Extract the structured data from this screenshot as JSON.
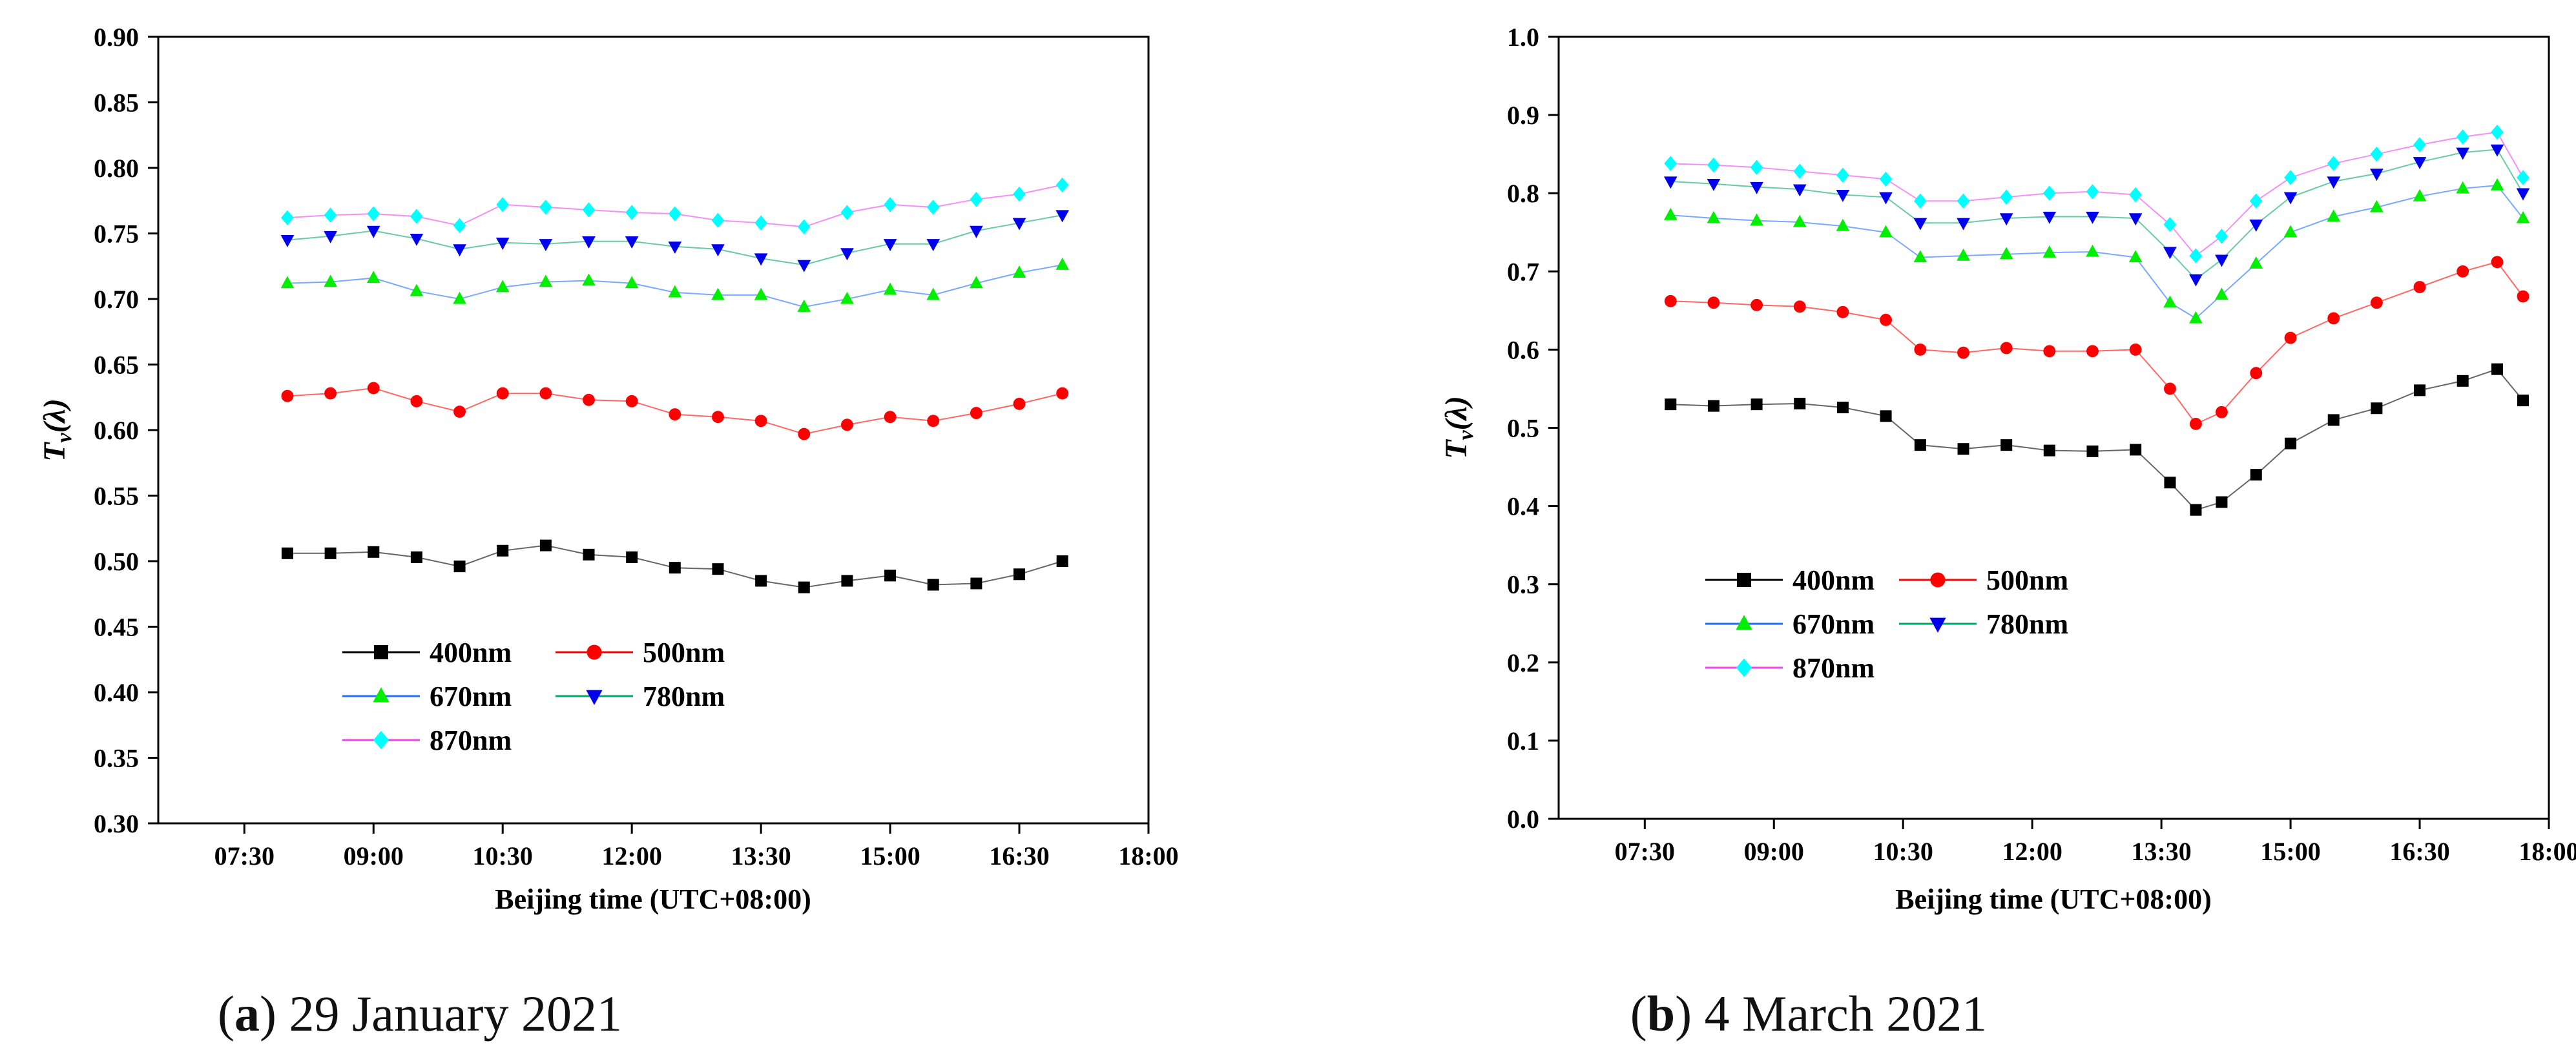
{
  "colors": {
    "400nm": "#000000",
    "500nm": "#ff0000",
    "670nm": "#00ee00",
    "780nm": "#0000ee",
    "870nm": "#00ffff",
    "line_400nm": "#000000",
    "line_500nm": "#ff0000",
    "line_670nm": "#1f6fff",
    "line_780nm": "#00aa66",
    "line_870nm": "#ee44ee"
  },
  "captions": [
    {
      "letter": "a",
      "text": "29 January 2021"
    },
    {
      "letter": "b",
      "text": "4 March 2021"
    }
  ],
  "chart_data": [
    {
      "type": "scatter",
      "panel": "a",
      "title": "",
      "xlabel": "Beijing time (UTC+08:00)",
      "ylabel": "T_v(λ)",
      "xlim": [
        6.5,
        18.0
      ],
      "ylim": [
        0.3,
        0.9
      ],
      "xticks": [
        7.5,
        9.0,
        10.5,
        12.0,
        13.5,
        15.0,
        16.5,
        18.0
      ],
      "xtick_labels": [
        "07:30",
        "09:00",
        "10:30",
        "12:00",
        "13:30",
        "15:00",
        "16:30",
        "18:00"
      ],
      "yticks": [
        0.3,
        0.35,
        0.4,
        0.45,
        0.5,
        0.55,
        0.6,
        0.65,
        0.7,
        0.75,
        0.8,
        0.85,
        0.9
      ],
      "ytick_labels": [
        "0.30",
        "0.35",
        "0.40",
        "0.45",
        "0.50",
        "0.55",
        "0.60",
        "0.65",
        "0.70",
        "0.75",
        "0.80",
        "0.85",
        "0.90"
      ],
      "legend": [
        "400nm",
        "500nm",
        "670nm",
        "780nm",
        "870nm"
      ],
      "legend_position": "lower-left",
      "x": [
        8.0,
        8.5,
        9.0,
        9.5,
        10.0,
        10.5,
        11.0,
        11.5,
        12.0,
        12.5,
        13.0,
        13.5,
        14.0,
        14.5,
        15.0,
        15.5,
        16.0,
        16.5,
        17.0
      ],
      "series": [
        {
          "name": "400nm",
          "marker": "square",
          "values": [
            0.506,
            0.506,
            0.507,
            0.503,
            0.496,
            0.508,
            0.512,
            0.505,
            0.503,
            0.495,
            0.494,
            0.485,
            0.48,
            0.485,
            0.489,
            0.482,
            0.483,
            0.49,
            0.5
          ]
        },
        {
          "name": "500nm",
          "marker": "circle",
          "values": [
            0.626,
            0.628,
            0.632,
            0.622,
            0.614,
            0.628,
            0.628,
            0.623,
            0.622,
            0.612,
            0.61,
            0.607,
            0.597,
            0.604,
            0.61,
            0.607,
            0.613,
            0.62,
            0.628
          ]
        },
        {
          "name": "670nm",
          "marker": "triangle-up",
          "values": [
            0.712,
            0.713,
            0.716,
            0.706,
            0.7,
            0.709,
            0.713,
            0.714,
            0.712,
            0.705,
            0.703,
            0.703,
            0.694,
            0.7,
            0.707,
            0.703,
            0.712,
            0.72,
            0.726
          ]
        },
        {
          "name": "780nm",
          "marker": "triangle-down",
          "values": [
            0.745,
            0.748,
            0.752,
            0.746,
            0.738,
            0.743,
            0.742,
            0.744,
            0.744,
            0.74,
            0.738,
            0.731,
            0.726,
            0.735,
            0.742,
            0.742,
            0.752,
            0.758,
            0.764
          ]
        },
        {
          "name": "870nm",
          "marker": "diamond",
          "values": [
            0.762,
            0.764,
            0.765,
            0.763,
            0.756,
            0.772,
            0.77,
            0.768,
            0.766,
            0.765,
            0.76,
            0.758,
            0.755,
            0.766,
            0.772,
            0.77,
            0.776,
            0.78,
            0.787
          ]
        }
      ]
    },
    {
      "type": "scatter",
      "panel": "b",
      "title": "",
      "xlabel": "Beijing time (UTC+08:00)",
      "ylabel": "T_v(λ)",
      "xlim": [
        6.5,
        18.0
      ],
      "ylim": [
        0.0,
        1.0
      ],
      "xticks": [
        7.5,
        9.0,
        10.5,
        12.0,
        13.5,
        15.0,
        16.5,
        18.0
      ],
      "xtick_labels": [
        "07:30",
        "09:00",
        "10:30",
        "12:00",
        "13:30",
        "15:00",
        "16:30",
        "18:00"
      ],
      "yticks": [
        0.0,
        0.1,
        0.2,
        0.3,
        0.4,
        0.5,
        0.6,
        0.7,
        0.8,
        0.9,
        1.0
      ],
      "ytick_labels": [
        "0.0",
        "0.1",
        "0.2",
        "0.3",
        "0.4",
        "0.5",
        "0.6",
        "0.7",
        "0.8",
        "0.9",
        "1.0"
      ],
      "legend": [
        "400nm",
        "500nm",
        "670nm",
        "780nm",
        "870nm"
      ],
      "legend_position": "middle-left",
      "x": [
        7.8,
        8.3,
        8.8,
        9.3,
        9.8,
        10.3,
        10.7,
        11.2,
        11.7,
        12.2,
        12.7,
        13.2,
        13.6,
        13.9,
        14.2,
        14.6,
        15.0,
        15.5,
        16.0,
        16.5,
        17.0,
        17.4,
        17.7
      ],
      "series": [
        {
          "name": "400nm",
          "marker": "square",
          "values": [
            0.53,
            0.528,
            0.53,
            0.531,
            0.526,
            0.515,
            0.478,
            0.473,
            0.478,
            0.471,
            0.47,
            0.472,
            0.43,
            0.395,
            0.405,
            0.44,
            0.48,
            0.51,
            0.525,
            0.548,
            0.56,
            0.575,
            0.535
          ]
        },
        {
          "name": "500nm",
          "marker": "circle",
          "values": [
            0.662,
            0.66,
            0.657,
            0.655,
            0.648,
            0.638,
            0.6,
            0.596,
            0.602,
            0.598,
            0.598,
            0.6,
            0.55,
            0.505,
            0.52,
            0.57,
            0.615,
            0.64,
            0.66,
            0.68,
            0.7,
            0.712,
            0.668
          ]
        },
        {
          "name": "670nm",
          "marker": "triangle-up",
          "values": [
            0.772,
            0.768,
            0.765,
            0.763,
            0.758,
            0.75,
            0.718,
            0.72,
            0.722,
            0.724,
            0.725,
            0.718,
            0.66,
            0.64,
            0.67,
            0.71,
            0.75,
            0.77,
            0.782,
            0.796,
            0.806,
            0.81,
            0.768
          ]
        },
        {
          "name": "780nm",
          "marker": "triangle-down",
          "values": [
            0.815,
            0.812,
            0.808,
            0.805,
            0.798,
            0.795,
            0.762,
            0.762,
            0.768,
            0.77,
            0.77,
            0.768,
            0.725,
            0.69,
            0.715,
            0.76,
            0.795,
            0.815,
            0.825,
            0.84,
            0.852,
            0.856,
            0.8
          ]
        },
        {
          "name": "870nm",
          "marker": "diamond",
          "values": [
            0.838,
            0.836,
            0.833,
            0.828,
            0.823,
            0.818,
            0.79,
            0.79,
            0.795,
            0.8,
            0.802,
            0.798,
            0.76,
            0.72,
            0.745,
            0.79,
            0.82,
            0.838,
            0.85,
            0.862,
            0.872,
            0.878,
            0.82
          ]
        }
      ]
    }
  ]
}
